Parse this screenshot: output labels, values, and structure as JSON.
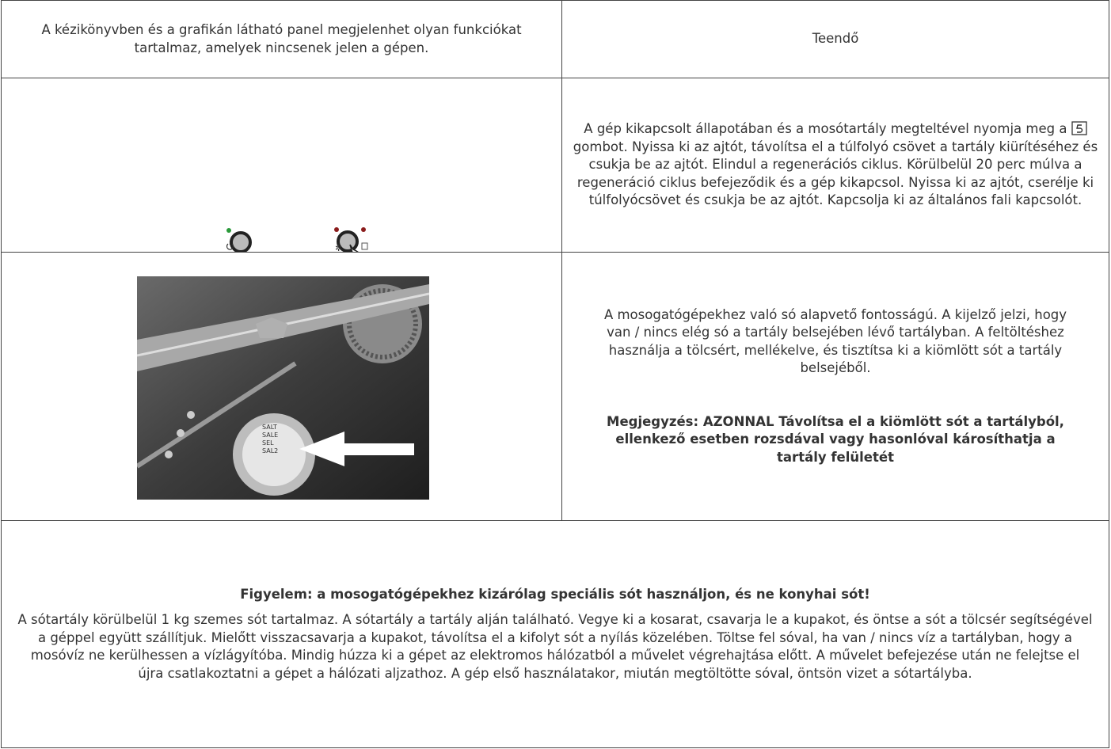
{
  "header": {
    "left": "A kézikönyvben és a grafikán látható panel megjelenhet olyan funkciókat tartalmaz, amelyek nincsenek jelen a gépen.",
    "right": "Teendő"
  },
  "rows": [
    {
      "right_before": "A gép kikapcsolt állapotában és a mosótartály megteltével nyomja meg a",
      "right_after": "gombot. Nyissa ki az ajtót, távolítsa el a túlfolyó csövet a tartály kiürítéséhez és csukja be az ajtót. Elindul a regenerációs ciklus. Körülbelül 20 perc múlva a regeneráció ciklus befejeződik és a gép kikapcsol. Nyissa ki az ajtót, cserélje ki túlfolyócsövet és csukja be az ajtót. Kapcsolja ki az általános fali kapcsolót."
    },
    {
      "right": "A mosogatógépekhez való só alapvető fontosságú. A kijelző jelzi, hogy van / nincs elég só a tartály belsejében lévő tartályban. A feltöltéshez használja a tölcsért, mellékelve, és tisztítsa ki a kiömlött sót a tartály belsejéből.",
      "note": "Megjegyzés: AZONNAL Távolítsa el a kiömlött sót a tartályból, ellenkező esetben rozsdával vagy hasonlóval károsíthatja a tartály felületét",
      "photo_labels": [
        "SALT",
        "SALE",
        "SEL",
        "SAL2"
      ]
    }
  ],
  "footer": {
    "warning": "Figyelem: a mosogatógépekhez kizárólag speciális sót használjon, és ne konyhai sót!",
    "text": "A sótartály körülbelül 1 kg szemes sót tartalmaz. A sótartály a tartály alján található. Vegye ki a kosarat, csavarja le a kupakot, és öntse a sót a tölcsér segítségével a géppel együtt szállítjuk. Mielőtt visszacsavarja a kupakot, távolítsa el a kifolyt sót a nyílás közelében. Töltse fel sóval, ha van / nincs víz a tartályban, hogy a mosóvíz ne kerülhessen a vízlágyítóba. Mindig húzza ki a gépet az elektromos hálózatból a művelet végrehajtása előtt. A művelet befejezése után ne felejtse el újra csatlakoztatni a gépet a hálózati aljzathoz. A gép első használatakor, miután megtöltötte sóval, öntsön vizet a sótartályba."
  }
}
